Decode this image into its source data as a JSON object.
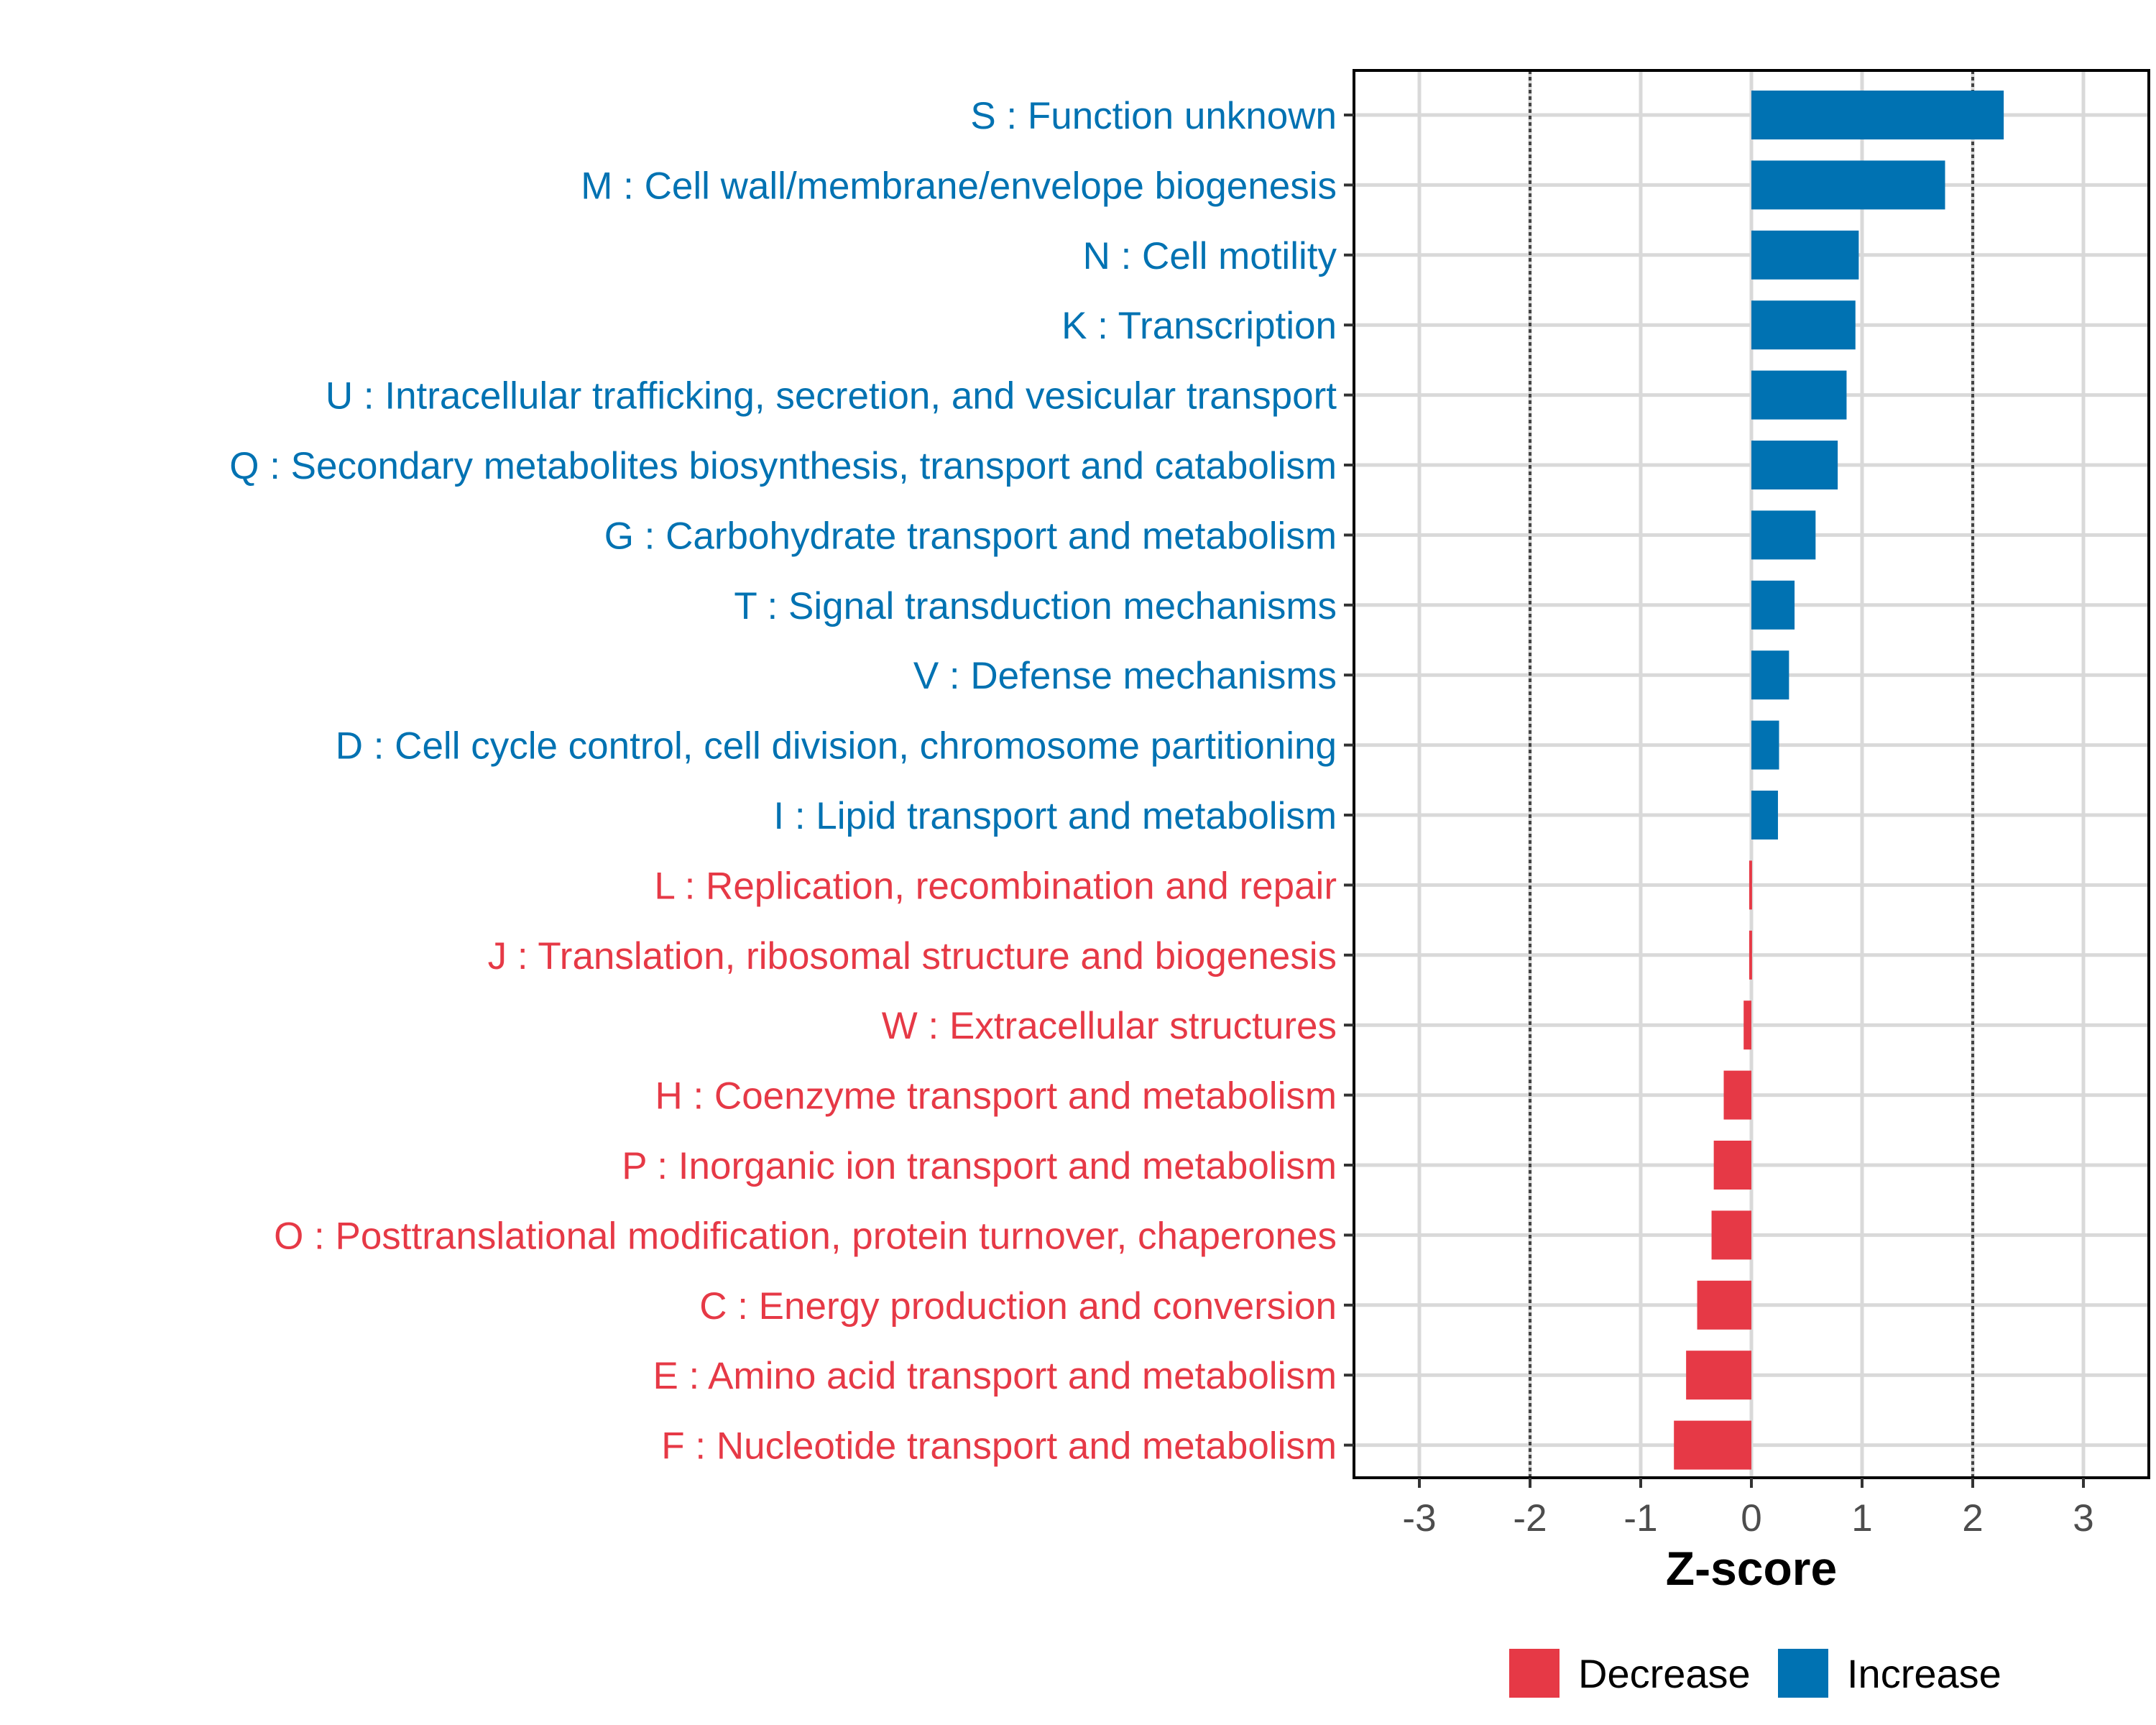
{
  "colors": {
    "increase": "#0072B2",
    "decrease": "#E63946",
    "panel_border": "#000000",
    "grid": "#d9d9d9"
  },
  "chart_data": {
    "type": "bar",
    "orientation": "horizontal",
    "xlabel": "Z-score",
    "ylabel": "",
    "xlim": [
      -3.6,
      3.6
    ],
    "x_ticks": [
      -3,
      -2,
      -1,
      0,
      1,
      2,
      3
    ],
    "x_tick_labels": [
      "-3",
      "-2",
      "-1",
      "0",
      "1",
      "2",
      "3"
    ],
    "reference_lines": [
      -2,
      2
    ],
    "grid": true,
    "legend_position": "bottom",
    "legend": [
      {
        "name": "Decrease",
        "color": "#E63946"
      },
      {
        "name": "Increase",
        "color": "#0072B2"
      }
    ],
    "categories": [
      "S : Function unknown",
      "M : Cell wall/membrane/envelope biogenesis",
      "N : Cell motility",
      "K : Transcription",
      "U : Intracellular trafficking, secretion, and vesicular transport",
      "Q : Secondary metabolites biosynthesis, transport and catabolism",
      "G : Carbohydrate transport and metabolism",
      "T : Signal transduction mechanisms",
      "V : Defense mechanisms",
      "D : Cell cycle control, cell division, chromosome partitioning",
      "I : Lipid transport and metabolism",
      "L : Replication, recombination and repair",
      "J : Translation, ribosomal structure and biogenesis",
      "W : Extracellular structures",
      "H : Coenzyme transport and metabolism",
      "P : Inorganic ion transport and metabolism",
      "O : Posttranslational modification, protein turnover, chaperones",
      "C : Energy production and conversion",
      "E : Amino acid transport and metabolism",
      "F : Nucleotide transport and metabolism"
    ],
    "values": [
      2.28,
      1.75,
      0.97,
      0.94,
      0.86,
      0.78,
      0.58,
      0.39,
      0.34,
      0.25,
      0.24,
      -0.02,
      -0.02,
      -0.07,
      -0.25,
      -0.34,
      -0.36,
      -0.49,
      -0.59,
      -0.7
    ],
    "groups": [
      "Increase",
      "Increase",
      "Increase",
      "Increase",
      "Increase",
      "Increase",
      "Increase",
      "Increase",
      "Increase",
      "Increase",
      "Increase",
      "Decrease",
      "Decrease",
      "Decrease",
      "Decrease",
      "Decrease",
      "Decrease",
      "Decrease",
      "Decrease",
      "Decrease"
    ]
  }
}
